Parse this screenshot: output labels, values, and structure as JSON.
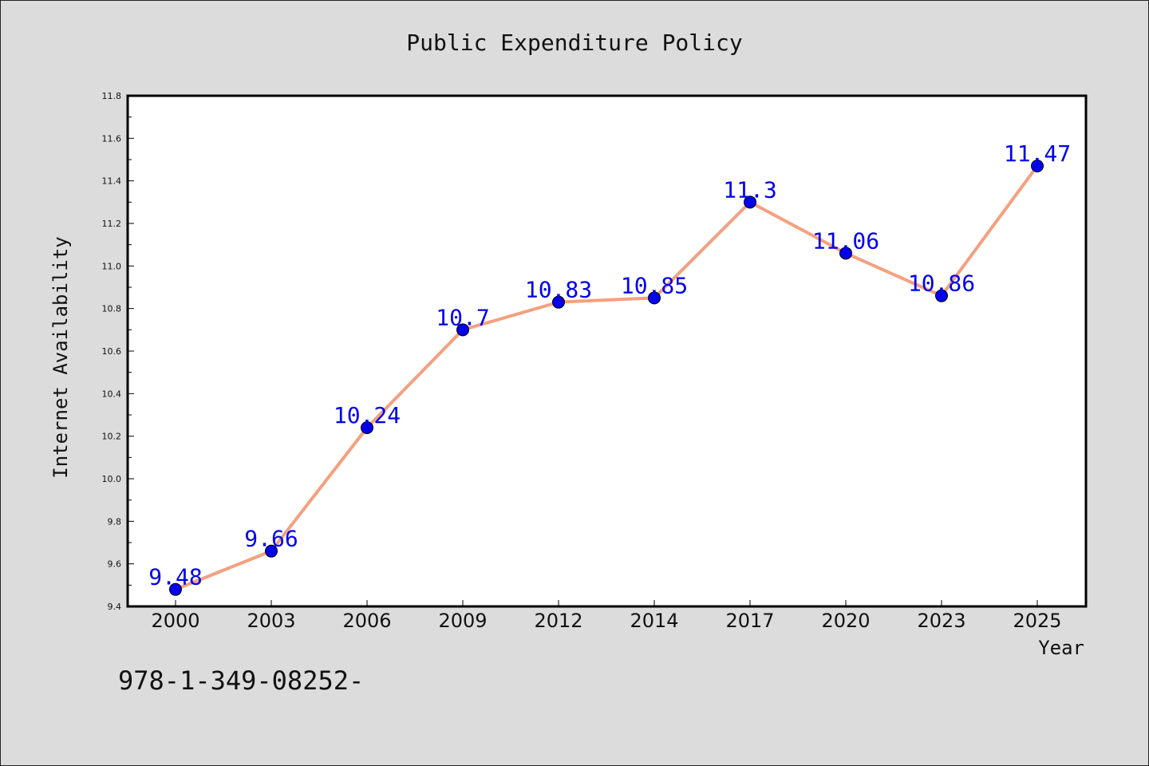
{
  "chart_data": {
    "type": "line",
    "title": "Public Expenditure Policy",
    "xlabel": "Year",
    "ylabel": "Internet Availability",
    "categories": [
      "2000",
      "2003",
      "2006",
      "2009",
      "2012",
      "2014",
      "2017",
      "2020",
      "2023",
      "2025"
    ],
    "values": [
      9.48,
      9.66,
      10.24,
      10.7,
      10.83,
      10.85,
      11.3,
      11.06,
      10.86,
      11.47
    ],
    "data_labels": [
      "9.48",
      "9.66",
      "10.24",
      "10.7",
      "10.83",
      "10.85",
      "11.3",
      "11.06",
      "10.86",
      "11.47"
    ],
    "ylim": [
      9.4,
      11.8
    ],
    "yticks": [
      "9.4",
      "9.6",
      "9.8",
      "10.0",
      "10.2",
      "10.4",
      "10.6",
      "10.8",
      "11.0",
      "11.2",
      "11.4",
      "11.6",
      "11.8"
    ],
    "grid": false,
    "legend": "none",
    "line_color": "#f4a07f",
    "marker_color": "#0000ee",
    "label_color": "#0000ee",
    "annotation": "978-1-349-08252-"
  }
}
